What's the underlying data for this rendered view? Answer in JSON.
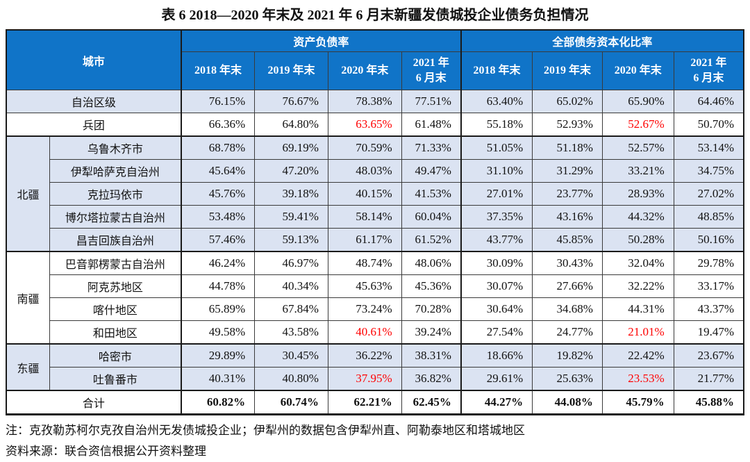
{
  "title": {
    "prefix": "表 6  2018—2020 年末及 2021 年 6 月末",
    "emphasis": "新疆发债城投企业债务负担情况"
  },
  "colors": {
    "header_blue": "#1074c8",
    "shaded_row": "#dbe3f2",
    "alert_red": "#ff0000"
  },
  "table": {
    "corner_header": "城市",
    "group_headers": [
      "资产负债率",
      "全部债务资本化比率"
    ],
    "year_headers": [
      "2018 年末",
      "2019 年末",
      "2020 年末",
      "2021 年\n6 月末"
    ],
    "rows": [
      {
        "city": "自治区级",
        "merged": true,
        "shaded": true,
        "thick_top": false,
        "bold": false,
        "red_indices": [],
        "values": [
          "76.15%",
          "76.67%",
          "78.38%",
          "77.51%",
          "63.40%",
          "65.02%",
          "65.90%",
          "64.46%"
        ]
      },
      {
        "city": "兵团",
        "merged": true,
        "shaded": false,
        "thick_top": false,
        "bold": false,
        "red_indices": [
          2,
          6
        ],
        "values": [
          "66.36%",
          "64.80%",
          "63.65%",
          "61.48%",
          "55.18%",
          "52.93%",
          "52.67%",
          "50.70%"
        ]
      },
      {
        "region": {
          "label": "北疆",
          "rowspan": 5
        },
        "city": "乌鲁木齐市",
        "merged": false,
        "shaded": true,
        "thick_top": true,
        "bold": false,
        "red_indices": [],
        "values": [
          "68.78%",
          "69.19%",
          "70.59%",
          "71.33%",
          "51.05%",
          "51.18%",
          "52.57%",
          "53.14%"
        ]
      },
      {
        "city": "伊犁哈萨克自治州",
        "merged": false,
        "shaded": true,
        "thick_top": false,
        "bold": false,
        "red_indices": [],
        "values": [
          "45.64%",
          "47.20%",
          "48.03%",
          "49.47%",
          "31.10%",
          "31.29%",
          "33.21%",
          "34.75%"
        ]
      },
      {
        "city": "克拉玛依市",
        "merged": false,
        "shaded": true,
        "thick_top": false,
        "bold": false,
        "red_indices": [],
        "values": [
          "45.76%",
          "39.18%",
          "40.15%",
          "41.53%",
          "27.01%",
          "23.77%",
          "28.93%",
          "27.02%"
        ]
      },
      {
        "city": "博尔塔拉蒙古自治州",
        "merged": false,
        "shaded": true,
        "thick_top": false,
        "bold": false,
        "red_indices": [],
        "values": [
          "53.48%",
          "59.41%",
          "58.14%",
          "60.04%",
          "37.35%",
          "43.16%",
          "44.32%",
          "48.85%"
        ]
      },
      {
        "city": "昌吉回族自治州",
        "merged": false,
        "shaded": true,
        "thick_top": false,
        "bold": false,
        "red_indices": [],
        "values": [
          "57.46%",
          "59.13%",
          "61.17%",
          "61.52%",
          "43.77%",
          "45.85%",
          "50.28%",
          "50.16%"
        ]
      },
      {
        "region": {
          "label": "南疆",
          "rowspan": 4
        },
        "city": "巴音郭楞蒙古自治州",
        "merged": false,
        "shaded": false,
        "thick_top": true,
        "bold": false,
        "red_indices": [],
        "values": [
          "46.24%",
          "46.97%",
          "48.74%",
          "48.06%",
          "30.09%",
          "30.43%",
          "32.04%",
          "29.78%"
        ]
      },
      {
        "city": "阿克苏地区",
        "merged": false,
        "shaded": false,
        "thick_top": false,
        "bold": false,
        "red_indices": [],
        "values": [
          "44.78%",
          "40.34%",
          "45.63%",
          "45.36%",
          "30.07%",
          "27.66%",
          "32.22%",
          "33.17%"
        ]
      },
      {
        "city": "喀什地区",
        "merged": false,
        "shaded": false,
        "thick_top": false,
        "bold": false,
        "red_indices": [],
        "values": [
          "65.89%",
          "67.84%",
          "73.24%",
          "70.28%",
          "30.64%",
          "34.68%",
          "44.31%",
          "43.37%"
        ]
      },
      {
        "city": "和田地区",
        "merged": false,
        "shaded": false,
        "thick_top": false,
        "bold": false,
        "red_indices": [
          2,
          6
        ],
        "values": [
          "49.58%",
          "43.58%",
          "40.61%",
          "39.24%",
          "27.54%",
          "24.77%",
          "21.01%",
          "19.47%"
        ]
      },
      {
        "region": {
          "label": "东疆",
          "rowspan": 2
        },
        "city": "哈密市",
        "merged": false,
        "shaded": true,
        "thick_top": true,
        "bold": false,
        "red_indices": [],
        "values": [
          "29.89%",
          "30.45%",
          "36.22%",
          "38.31%",
          "18.66%",
          "19.82%",
          "22.42%",
          "23.67%"
        ]
      },
      {
        "city": "吐鲁番市",
        "merged": false,
        "shaded": true,
        "thick_top": false,
        "bold": false,
        "red_indices": [
          2,
          6
        ],
        "values": [
          "40.31%",
          "40.80%",
          "37.95%",
          "36.82%",
          "29.61%",
          "25.63%",
          "23.53%",
          "21.77%"
        ]
      },
      {
        "city": "合计",
        "merged": true,
        "shaded": false,
        "thick_top": true,
        "bold": true,
        "red_indices": [],
        "values": [
          "60.82%",
          "60.74%",
          "62.21%",
          "62.45%",
          "44.27%",
          "44.08%",
          "45.79%",
          "45.88%"
        ]
      }
    ]
  },
  "notes": [
    "注：克孜勒苏柯尔克孜自治州无发债城投企业；伊犁州的数据包含伊犁州直、阿勒泰地区和塔城地区",
    "资料来源：联合资信根据公开资料整理"
  ]
}
